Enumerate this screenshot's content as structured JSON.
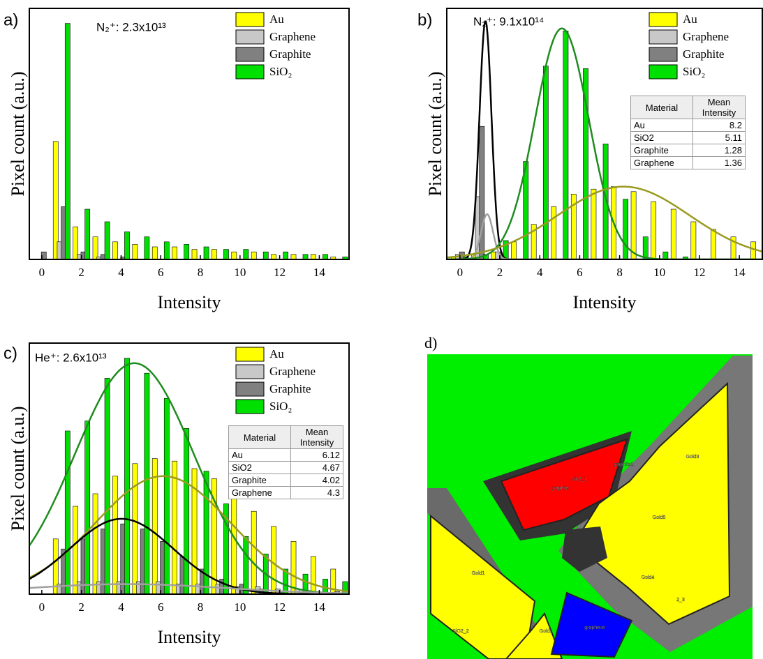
{
  "chart_data": [
    {
      "type": "bar",
      "panel_label": "a)",
      "annotation": "N₂⁺: 2.3x10¹³",
      "x_label": "Intensity",
      "y_label": "Pixel count (a.u.)",
      "x": [
        0,
        1,
        2,
        3,
        4,
        5,
        6,
        7,
        8,
        9,
        10,
        11,
        12,
        13,
        14,
        15
      ],
      "xlim": [
        -0.63,
        15.5
      ],
      "xticks": [
        0,
        2,
        4,
        6,
        8,
        10,
        12,
        14
      ],
      "ylim": [
        0,
        100
      ],
      "legend": "top-right",
      "series": [
        {
          "name": "Au",
          "color": "#ffff00",
          "values": [
            0,
            47,
            13,
            9,
            7,
            6,
            5,
            5,
            4,
            4,
            3,
            3,
            2,
            2,
            2,
            1
          ]
        },
        {
          "name": "Graphene",
          "color": "#c8c8c8",
          "values": [
            0,
            7,
            2,
            1,
            0,
            0,
            0,
            0,
            0,
            0,
            0,
            0,
            0,
            0,
            0,
            0
          ]
        },
        {
          "name": "Graphite",
          "color": "#808080",
          "values": [
            3,
            21,
            3,
            2,
            1,
            0,
            0,
            0,
            0,
            0,
            0,
            0,
            0,
            0,
            0,
            0
          ]
        },
        {
          "name": "SiO₂",
          "color": "#00e000",
          "values": [
            0,
            94,
            20,
            15,
            11,
            9,
            7,
            6,
            5,
            4,
            4,
            3,
            3,
            2,
            2,
            1
          ]
        }
      ]
    },
    {
      "type": "bar",
      "panel_label": "b)",
      "annotation": "N₂⁺: 9.1x10¹⁴",
      "x_label": "Intensity",
      "y_label": "Pixel count (a.u.)",
      "x": [
        0,
        1,
        2,
        3,
        4,
        5,
        6,
        7,
        8,
        9,
        10,
        11,
        12,
        13,
        14,
        15
      ],
      "xlim": [
        -0.66,
        15.15
      ],
      "xticks": [
        0,
        2,
        4,
        6,
        8,
        10,
        12,
        14
      ],
      "ylim": [
        0,
        100
      ],
      "legend": "top-right",
      "series": [
        {
          "name": "Au",
          "color": "#ffff00",
          "values": [
            1,
            2,
            3,
            7,
            14,
            21,
            26,
            28,
            29,
            27,
            23,
            20,
            15,
            12,
            9,
            7
          ]
        },
        {
          "name": "Graphene",
          "color": "#c8c8c8",
          "values": [
            2,
            25,
            3,
            0,
            0,
            0,
            0,
            0,
            0,
            0,
            0,
            0,
            0,
            0,
            0,
            0
          ]
        },
        {
          "name": "Graphite",
          "color": "#808080",
          "values": [
            3,
            53,
            2,
            0,
            0,
            0,
            0,
            0,
            0,
            0,
            0,
            0,
            0,
            0,
            0,
            0
          ]
        },
        {
          "name": "SiO₂",
          "color": "#00e000",
          "values": [
            1,
            2,
            7.5,
            39,
            77,
            91,
            76,
            46,
            24,
            9,
            3,
            1,
            0,
            0,
            0,
            0
          ]
        }
      ],
      "fits": [
        {
          "color": "#000000",
          "mean": 1.28,
          "sd": 0.3,
          "peak": 95
        },
        {
          "color": "#a0a0a0",
          "mean": 1.36,
          "sd": 0.3,
          "peak": 18
        },
        {
          "color": "#1e8c1e",
          "mean": 5.11,
          "sd": 1.35,
          "peak": 92
        },
        {
          "color": "#9a9a20",
          "mean": 8.2,
          "sd": 3.3,
          "peak": 29
        }
      ],
      "table": {
        "columns": [
          "Material",
          "Mean Intensity"
        ],
        "rows": [
          [
            "Au",
            8.2
          ],
          [
            "SiO2",
            5.11
          ],
          [
            "Graphite",
            1.28
          ],
          [
            "Graphene",
            1.36
          ]
        ]
      }
    },
    {
      "type": "bar",
      "panel_label": "c)",
      "annotation": "He⁺: 2.6x10¹³",
      "x_label": "Intensity",
      "y_label": "Pixel count (a.u.)",
      "x": [
        0,
        1,
        2,
        3,
        4,
        5,
        6,
        7,
        8,
        9,
        10,
        11,
        12,
        13,
        14,
        15
      ],
      "xlim": [
        -0.63,
        15.5
      ],
      "xticks": [
        0,
        2,
        4,
        6,
        8,
        10,
        12,
        14
      ],
      "ylim": [
        0,
        100
      ],
      "legend": "top-right",
      "series": [
        {
          "name": "Au",
          "color": "#ffff00",
          "values": [
            0,
            22,
            35,
            40,
            47,
            52,
            54,
            53,
            50,
            46,
            40,
            33,
            27,
            21,
            15,
            10
          ]
        },
        {
          "name": "Graphene",
          "color": "#c8c8c8",
          "values": [
            0,
            4,
            5,
            5,
            5,
            5,
            5,
            4,
            4,
            4,
            3,
            3,
            2,
            2,
            1,
            1
          ]
        },
        {
          "name": "Graphite",
          "color": "#808080",
          "values": [
            0,
            18,
            22,
            26,
            28,
            26,
            21,
            15,
            10,
            6,
            4,
            2,
            1,
            1,
            0,
            0
          ]
        },
        {
          "name": "SiO₂",
          "color": "#00e000",
          "values": [
            0,
            65,
            69,
            86,
            94,
            88,
            78,
            66,
            49,
            36,
            23,
            16,
            10,
            8,
            6,
            5
          ]
        }
      ],
      "fits": [
        {
          "color": "#1e8c1e",
          "mean": 4.67,
          "sd": 3.0,
          "peak": 92
        },
        {
          "color": "#9a9a20",
          "mean": 6.12,
          "sd": 3.4,
          "peak": 47
        },
        {
          "color": "#000000",
          "mean": 4.02,
          "sd": 2.6,
          "peak": 30
        },
        {
          "color": "#a0a0a0",
          "mean": 4.3,
          "sd": 5,
          "peak": 4
        }
      ],
      "table": {
        "columns": [
          "Material",
          "Mean Intensity"
        ],
        "rows": [
          [
            "Au",
            6.12
          ],
          [
            "SiO2",
            4.67
          ],
          [
            "Graphite",
            4.02
          ],
          [
            "Graphene",
            4.3
          ]
        ]
      }
    }
  ],
  "image": {
    "panel_label": "d)",
    "regions": [
      "sio2_1",
      "graphite2",
      "graphite",
      "Gold3",
      "Gold5",
      "Gold1",
      "Gold4",
      "SiO2_2",
      "Gold2",
      "graphene",
      "2_3"
    ]
  }
}
